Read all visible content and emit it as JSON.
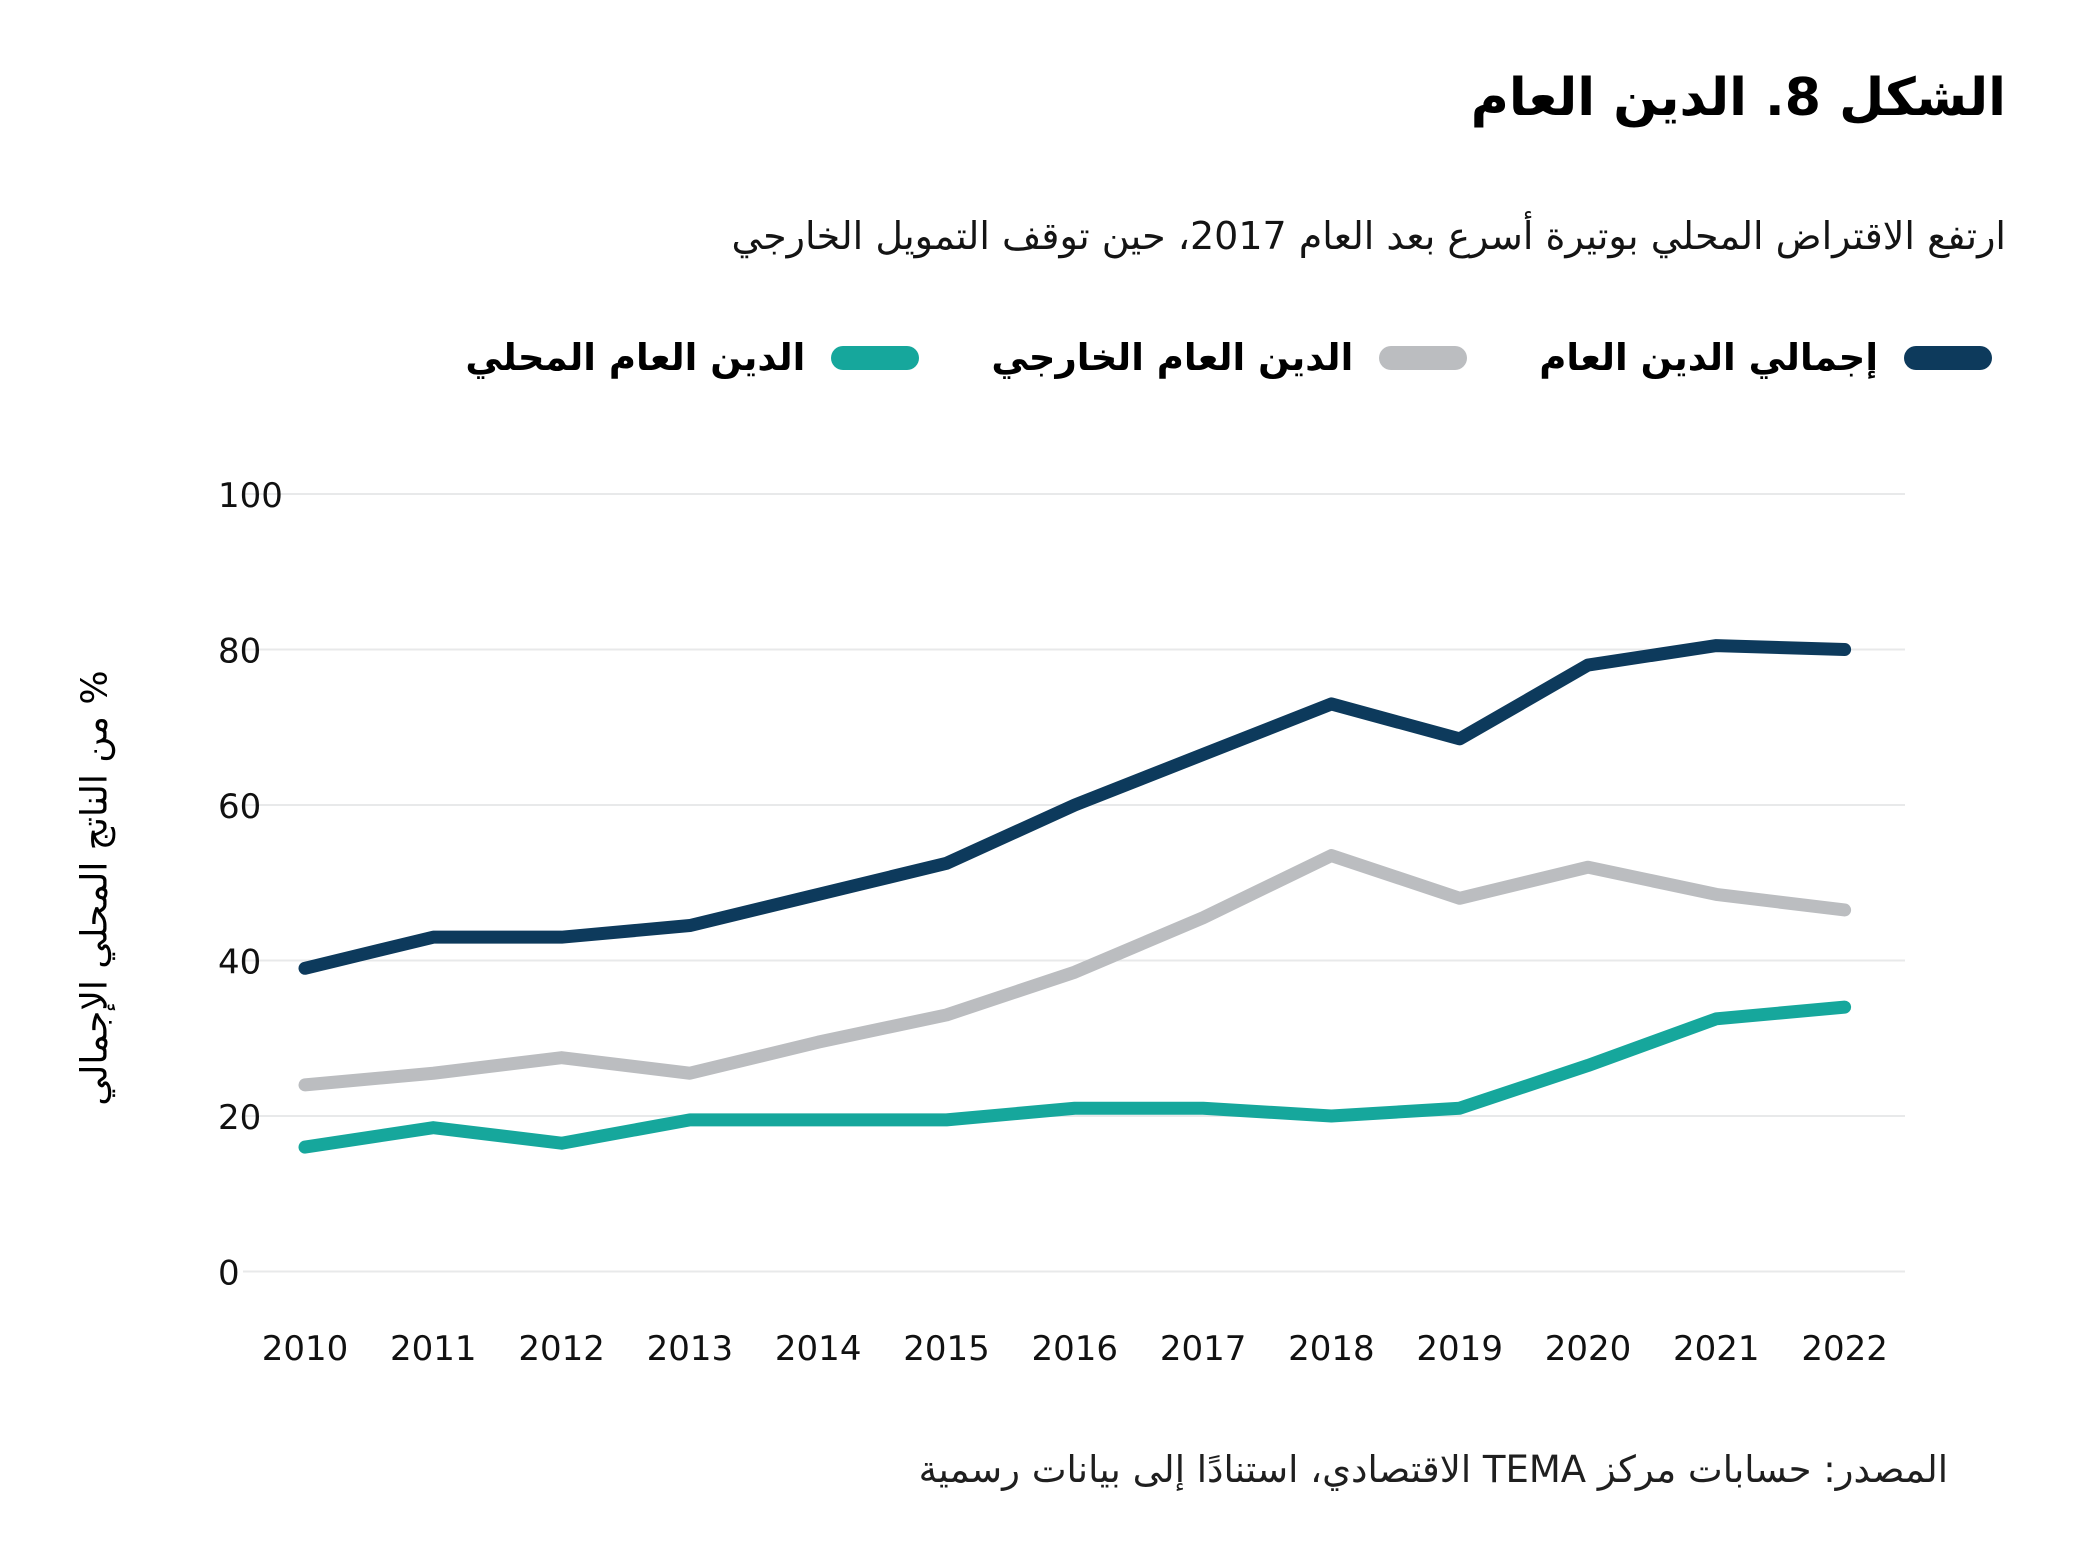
{
  "header": {
    "title": "الشكل 8. الدين العام",
    "subtitle": "ارتفع الاقتراض المحلي بوتيرة أسرع بعد العام 2017، حين توقف التمويل الخارجي"
  },
  "source_line": "المصدر: حسابات مركز TEMA الاقتصادي، استنادًا إلى بيانات رسمية",
  "colors": {
    "total_debt": "#0D3A5C",
    "external_debt": "#BBBDC0",
    "domestic_debt": "#16A79C",
    "gridline": "#E8E9EA",
    "tick_text": "#111111"
  },
  "chart_data": {
    "type": "line",
    "title": "الشكل 8. الدين العام",
    "subtitle": "ارتفع الاقتراض المحلي بوتيرة أسرع بعد العام 2017، حين توقف التمويل الخارجي",
    "x": [
      2010,
      2011,
      2012,
      2013,
      2014,
      2015,
      2016,
      2017,
      2018,
      2019,
      2020,
      2021,
      2022
    ],
    "series": [
      {
        "name": "إجمالي الدين العام",
        "color": "#0D3A5C",
        "values": [
          39,
          43,
          43,
          44.5,
          48.5,
          52.5,
          60,
          66.5,
          73,
          68.5,
          78,
          80.5,
          80
        ]
      },
      {
        "name": "الدين العام الخارجي",
        "color": "#BBBDC0",
        "values": [
          24,
          25.5,
          27.5,
          25.5,
          29.5,
          33,
          38.5,
          45.5,
          53.5,
          48,
          52,
          48.5,
          46.5
        ]
      },
      {
        "name": "الدين العام المحلي",
        "color": "#16A79C",
        "values": [
          16,
          18.5,
          16.5,
          19.5,
          19.5,
          19.5,
          21,
          21,
          20,
          21,
          26.5,
          32.5,
          34
        ]
      }
    ],
    "xlabel": "",
    "ylabel": "% من الناتج المحلي الإجمالي",
    "yticks": [
      0,
      20,
      40,
      60,
      80,
      100
    ],
    "ylim": [
      0,
      100
    ],
    "grid": true,
    "legend_position": "top-right"
  }
}
